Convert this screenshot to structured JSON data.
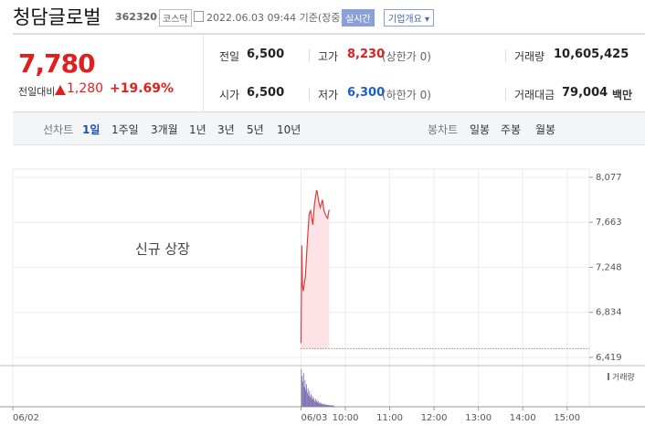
{
  "header": {
    "name": "청담글로벌",
    "code": "362320",
    "market": "코스닥",
    "time": "2022.06.03 09:44 기준(장중)",
    "realtime": "실시간",
    "company_button": "기업개요"
  },
  "quote": {
    "price": "7,780",
    "change_label": "전일대비",
    "change": "1,280",
    "change_rate": "+19.69%",
    "items": [
      {
        "label": "전일",
        "value": "6,500"
      },
      {
        "label": "고가",
        "value": "8,230",
        "note": "(상한가 0)"
      },
      {
        "label": "거래량",
        "value": "10,605,425"
      },
      {
        "label": "시가",
        "value": "6,500"
      },
      {
        "label": "저가",
        "value": "6,300",
        "note": "(하한가 0)"
      },
      {
        "label": "거래대금",
        "value": "79,004",
        "unit": "백만"
      }
    ]
  },
  "tabs": {
    "line_label": "선차트",
    "line_periods": [
      "1일",
      "1주일",
      "3개월",
      "1년",
      "3년",
      "5년",
      "10년"
    ],
    "candle_label": "봉차트",
    "candle_periods": [
      "일봉",
      "주봉",
      "월봉"
    ]
  },
  "chart_data": {
    "type": "line",
    "annotation": "신규 상장",
    "color": "#e03c3c",
    "fill": "#fde3e6",
    "x": [
      540,
      541,
      542,
      543,
      546,
      548,
      551,
      553,
      556,
      558,
      561,
      562,
      564,
      566,
      569,
      571,
      574,
      576,
      578
    ],
    "values": [
      6550,
      7450,
      7080,
      7030,
      7170,
      7420,
      7740,
      7770,
      7640,
      7820,
      7960,
      7940,
      7850,
      7800,
      7870,
      7770,
      7720,
      7700,
      7780
    ],
    "base_value": 6500,
    "ylim": [
      6419,
      8077
    ],
    "yticks": [
      {
        "value": 8077,
        "label": "8,077"
      },
      {
        "value": 7663,
        "label": "7,663"
      },
      {
        "value": 7248,
        "label": "7,248"
      },
      {
        "value": 6834,
        "label": "6,834"
      },
      {
        "value": 6419,
        "label": "6,419"
      }
    ],
    "xlim": [
      150,
      930
    ],
    "xticks": [
      {
        "value": 150,
        "label": "06/02"
      },
      {
        "value": 540,
        "label": "06/03"
      },
      {
        "value": 600,
        "label": "10:00"
      },
      {
        "value": 660,
        "label": "11:00"
      },
      {
        "value": 720,
        "label": "12:00"
      },
      {
        "value": 780,
        "label": "13:00"
      },
      {
        "value": 840,
        "label": "14:00"
      },
      {
        "value": 900,
        "label": "15:00"
      }
    ],
    "volume": {
      "name": "거래량",
      "color": "#7b6bb0",
      "ylim": [
        0,
        1400000
      ],
      "x": [
        540,
        541,
        542,
        543,
        544,
        545,
        546,
        547,
        548,
        549,
        550,
        551,
        552,
        553,
        554,
        555,
        556,
        557,
        558,
        559,
        560,
        561,
        562,
        563,
        564,
        565,
        566,
        567,
        568,
        569,
        570,
        571,
        572,
        573,
        574,
        575,
        576,
        577,
        578,
        579,
        580,
        581,
        582,
        583,
        584
      ],
      "values": [
        1350000,
        1100000,
        900000,
        1200000,
        700000,
        950000,
        600000,
        800000,
        500000,
        650000,
        400000,
        550000,
        350000,
        450000,
        300000,
        380000,
        250000,
        320000,
        200000,
        280000,
        180000,
        240000,
        150000,
        200000,
        120000,
        160000,
        100000,
        140000,
        90000,
        110000,
        80000,
        95000,
        70000,
        85000,
        60000,
        75000,
        55000,
        65000,
        50000,
        60000,
        45000,
        50000,
        40000,
        45000,
        35000
      ]
    }
  }
}
